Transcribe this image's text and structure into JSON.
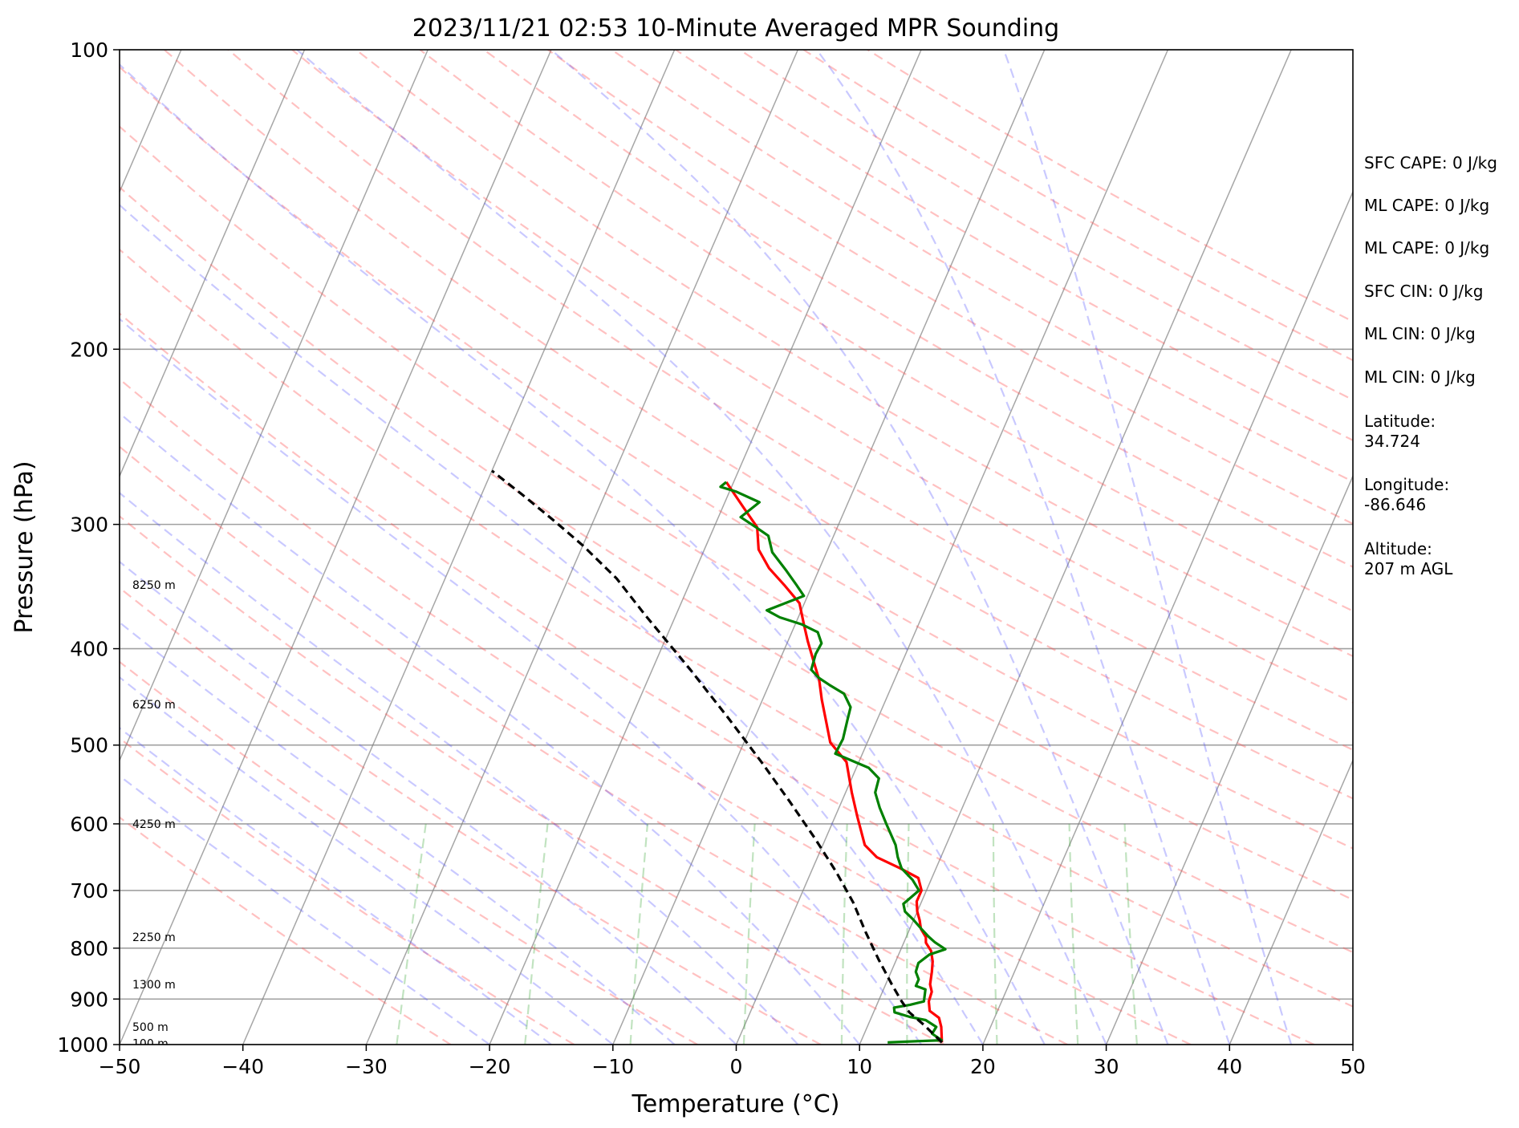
{
  "chart_data": {
    "type": "line",
    "title": "2023/11/21 02:53 10-Minute Averaged MPR Sounding",
    "xlabel": "Temperature (°C)",
    "ylabel": "Pressure (hPa)",
    "xlim": [
      -50,
      50
    ],
    "ylim": [
      1000,
      100
    ],
    "y_scale": "log",
    "grid": true,
    "x_ticks": [
      "−50",
      "−40",
      "−30",
      "−20",
      "−10",
      "0",
      "10",
      "20",
      "30",
      "40",
      "50"
    ],
    "y_ticks": [
      "100",
      "200",
      "300",
      "400",
      "500",
      "600",
      "700",
      "800",
      "900",
      "1000"
    ],
    "series": [
      {
        "color": "#ff0000",
        "points": [
          [
            16.6,
            995
          ],
          [
            16.0,
            960
          ],
          [
            15.5,
            940
          ],
          [
            14.5,
            925
          ],
          [
            14.1,
            905
          ],
          [
            14.0,
            885
          ],
          [
            13.6,
            870
          ],
          [
            13.3,
            845
          ],
          [
            13.0,
            825
          ],
          [
            12.5,
            805
          ],
          [
            11.8,
            790
          ],
          [
            11.6,
            780
          ],
          [
            10.9,
            765
          ],
          [
            10.5,
            750
          ],
          [
            10.0,
            735
          ],
          [
            9.6,
            718
          ],
          [
            9.6,
            700
          ],
          [
            8.9,
            680
          ],
          [
            7.1,
            665
          ],
          [
            4.8,
            648
          ],
          [
            3.4,
            630
          ],
          [
            1.8,
            590
          ],
          [
            0.5,
            558
          ],
          [
            -1.0,
            520
          ],
          [
            -3.0,
            497
          ],
          [
            -4.0,
            475
          ],
          [
            -5.2,
            450
          ],
          [
            -6.1,
            430
          ],
          [
            -7.2,
            412
          ],
          [
            -8.4,
            393
          ],
          [
            -9.3,
            378
          ],
          [
            -10.4,
            360
          ],
          [
            -12.3,
            345
          ],
          [
            -14.1,
            332
          ],
          [
            -15.6,
            318
          ],
          [
            -16.5,
            302
          ],
          [
            -18.1,
            290
          ],
          [
            -20.6,
            272
          ]
        ]
      },
      {
        "color": "#008000",
        "points": [
          [
            12.2,
            995
          ],
          [
            16.5,
            990
          ],
          [
            15.5,
            975
          ],
          [
            15.6,
            960
          ],
          [
            14.5,
            945
          ],
          [
            13.1,
            938
          ],
          [
            11.7,
            928
          ],
          [
            11.5,
            918
          ],
          [
            12.7,
            912
          ],
          [
            13.7,
            905
          ],
          [
            13.4,
            880
          ],
          [
            12.5,
            873
          ],
          [
            12.5,
            860
          ],
          [
            12.0,
            845
          ],
          [
            11.9,
            828
          ],
          [
            12.5,
            812
          ],
          [
            13.6,
            802
          ],
          [
            12.5,
            789
          ],
          [
            11.8,
            779
          ],
          [
            11.0,
            766
          ],
          [
            9.9,
            748
          ],
          [
            9.0,
            735
          ],
          [
            8.6,
            722
          ],
          [
            9.4,
            700
          ],
          [
            8.5,
            683
          ],
          [
            7.2,
            665
          ],
          [
            6.5,
            648
          ],
          [
            5.9,
            630
          ],
          [
            4.4,
            600
          ],
          [
            3.3,
            578
          ],
          [
            2.4,
            558
          ],
          [
            2.2,
            540
          ],
          [
            1.0,
            527
          ],
          [
            -2.2,
            510
          ],
          [
            -2.1,
            493
          ],
          [
            -2.4,
            472
          ],
          [
            -2.6,
            458
          ],
          [
            -3.6,
            444
          ],
          [
            -5.1,
            435
          ],
          [
            -6.2,
            428
          ],
          [
            -7.1,
            420
          ],
          [
            -7.3,
            405
          ],
          [
            -7.2,
            395
          ],
          [
            -7.9,
            385
          ],
          [
            -9.5,
            378
          ],
          [
            -11.5,
            372
          ],
          [
            -12.8,
            366
          ],
          [
            -10.3,
            354
          ],
          [
            -11.3,
            345
          ],
          [
            -12.6,
            334
          ],
          [
            -14.4,
            320
          ],
          [
            -15.3,
            308
          ],
          [
            -16.6,
            302
          ],
          [
            -18.2,
            295
          ],
          [
            -17.2,
            285
          ],
          [
            -19.5,
            278
          ],
          [
            -20.9,
            275
          ],
          [
            -20.6,
            272
          ]
        ]
      },
      {
        "color": "#000000",
        "dashed": true,
        "points": [
          [
            16.6,
            995
          ],
          [
            14.5,
            955
          ],
          [
            12.9,
            928
          ],
          [
            11.9,
            905
          ],
          [
            10.5,
            870
          ],
          [
            8.5,
            820
          ],
          [
            6.5,
            770
          ],
          [
            4.5,
            720
          ],
          [
            2.0,
            670
          ],
          [
            -0.9,
            620
          ],
          [
            -4.2,
            570
          ],
          [
            -7.9,
            520
          ],
          [
            -12.1,
            470
          ],
          [
            -16.9,
            420
          ],
          [
            -22.5,
            370
          ],
          [
            -26.1,
            340
          ],
          [
            -30.0,
            315
          ],
          [
            -33.1,
            298
          ],
          [
            -36.7,
            280
          ],
          [
            -40.0,
            265
          ]
        ]
      }
    ],
    "height_labels": [
      "8250 m",
      "6250 m",
      "4250 m",
      "2250 m",
      "1300 m",
      "500 m",
      "100 m"
    ],
    "height_label_pressures": [
      345,
      455,
      600,
      780,
      870,
      960,
      997
    ],
    "dry_adiabats_K": [
      250,
      260,
      270,
      280,
      290,
      300,
      310,
      320,
      330,
      340,
      350,
      360,
      370,
      380,
      390,
      400,
      410,
      420,
      430,
      440,
      450,
      460,
      470,
      480
    ],
    "moist_adiabats_C": [
      -20,
      -15,
      -10,
      -5,
      0,
      5,
      10,
      15,
      20,
      25,
      30,
      35,
      40,
      45
    ],
    "mixing_ratio_lines_gkg": [
      0.4,
      1,
      2,
      4,
      7,
      10,
      16,
      24,
      32
    ],
    "colors": {
      "temperature": "#ff0000",
      "dewpoint": "#008000",
      "parcel": "#000000",
      "dry_adiabat": "#ff4d4d",
      "moist_adiabat": "#4d4dff",
      "mixing_ratio": "#4daf4a",
      "isotherm": "#808080"
    }
  },
  "side_panel": {
    "sfc_cape": "SFC CAPE: 0 J/kg",
    "ml_cape_1": "ML CAPE: 0 J/kg",
    "ml_cape_2": "ML CAPE: 0 J/kg",
    "sfc_cin": "SFC CIN: 0 J/kg",
    "ml_cin_1": "ML CIN: 0 J/kg",
    "ml_cin_2": "ML CIN: 0 J/kg",
    "latitude_label": "Latitude:",
    "latitude_value": "34.724",
    "longitude_label": "Longitude:",
    "longitude_value": "-86.646",
    "altitude_label": "Altitude:",
    "altitude_value": "207 m AGL"
  }
}
